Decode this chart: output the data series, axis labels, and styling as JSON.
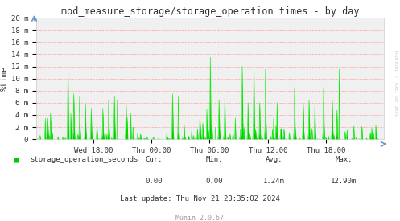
{
  "title": "mod_measure_storage/storage_operation times - by day",
  "ylabel": "%time",
  "ylim": [
    0,
    20
  ],
  "ytick_labels": [
    "0",
    "2 m",
    "4 m",
    "6 m",
    "8 m",
    "10 m",
    "12 m",
    "14 m",
    "16 m",
    "18 m",
    "20 m"
  ],
  "ytick_vals": [
    0,
    2,
    4,
    6,
    8,
    10,
    12,
    14,
    16,
    18,
    20
  ],
  "xtick_labels": [
    "Wed 18:00",
    "Thu 00:00",
    "Thu 06:00",
    "Thu 12:00",
    "Thu 18:00"
  ],
  "xtick_positions": [
    0.165,
    0.332,
    0.499,
    0.666,
    0.833
  ],
  "legend_label": "storage_operation_seconds",
  "legend_color": "#00cc00",
  "cur": "0.00",
  "min": "0.00",
  "avg": "1.24m",
  "max": "12.90m",
  "footer": "Last update: Thu Nov 21 23:35:02 2024",
  "munin_version": "Munin 2.0.67",
  "watermark": "RRDTOOL / TOBI OETIKER",
  "bg_color": "#FFFFFF",
  "plot_bg_color": "#F0F0F0",
  "grid_color": "#FF9999",
  "line_color": "#00EE00",
  "fill_color": "#00CC00",
  "title_color": "#333333"
}
